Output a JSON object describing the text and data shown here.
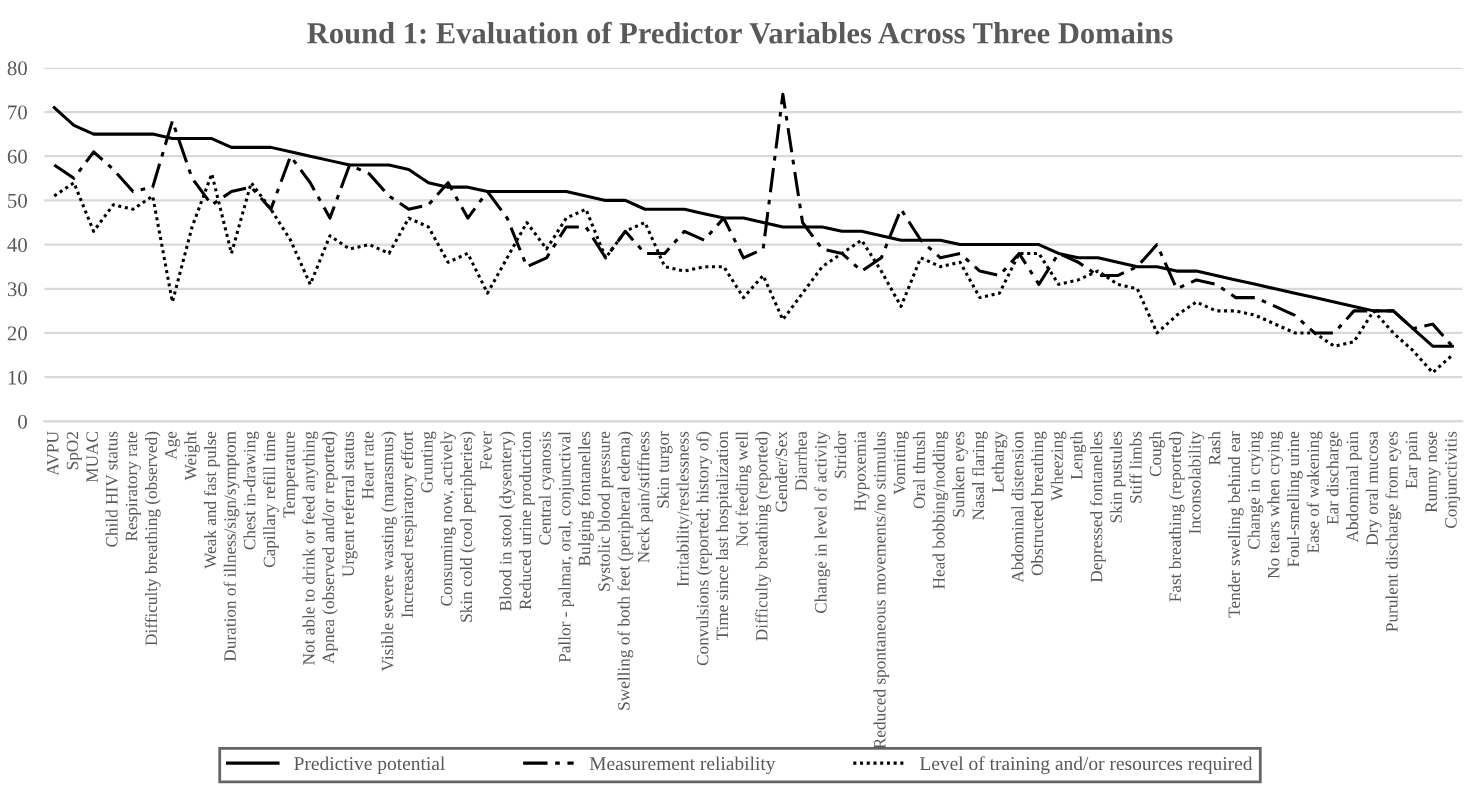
{
  "chart_data": {
    "type": "line",
    "title": "Round 1: Evaluation of Predictor Variables Across Three Domains",
    "categories": [
      "AVPU",
      "SpO2",
      "MUAC",
      "Child HIV status",
      "Respiratory rate",
      "Difficulty breathing (observed)",
      "Age",
      "Weight",
      "Weak and fast pulse",
      "Duration of illness/sign/symptom",
      "Chest in-drawing",
      "Capillary refill time",
      "Temperature",
      "Not able to drink or feed anything",
      "Apnea (observed and/or reported)",
      "Urgent referral status",
      "Heart rate",
      "Visible severe wasting (marasmus)",
      "Increased respiratory effort",
      "Grunting",
      "Consuming now, actively",
      "Skin cold (cool peripheries)",
      "Fever",
      "Blood in stool (dysentery)",
      "Reduced urine production",
      "Central cyanosis",
      "Pallor - palmar, oral, conjunctival",
      "Bulging fontanelles",
      "Systolic blood pressure",
      "Swelling of both feet (peripheral edema)",
      "Neck pain/stiffness",
      "Skin turgor",
      "Irritability/restlessness",
      "Convulsions (reported; history of)",
      "Time since last hospitalization",
      "Not feeding well",
      "Difficulty breathing (reported)",
      "Gender/Sex",
      "Diarrhea",
      "Change in level of activity",
      "Stridor",
      "Hypoxemia",
      "Reduced spontaneous movements/no stimulus",
      "Vomiting",
      "Oral thrush",
      "Head bobbing/nodding",
      "Sunken eyes",
      "Nasal flaring",
      "Lethargy",
      "Abdominal distension",
      "Obstructed breathing",
      "Wheezing",
      "Length",
      "Depressed fontanelles",
      "Skin pustules",
      "Stiff limbs",
      "Cough",
      "Fast breathing (reported)",
      "Inconsolability",
      "Rash",
      "Tender swelling behind ear",
      "Change in crying",
      "No tears when crying",
      "Foul-smelling urine",
      "Ease of wakening",
      "Ear discharge",
      "Abdominal pain",
      "Dry oral mucosa",
      "Purulent discharge from eyes",
      "Ear pain",
      "Runny nose",
      "Conjunctivitis"
    ],
    "series": [
      {
        "name": "Predictive potential",
        "color": "#000000",
        "line_style": "solid",
        "values": [
          71,
          67,
          65,
          65,
          65,
          65,
          64,
          64,
          64,
          62,
          62,
          62,
          61,
          60,
          59,
          58,
          58,
          58,
          57,
          54,
          53,
          53,
          52,
          52,
          52,
          52,
          52,
          51,
          50,
          50,
          48,
          48,
          48,
          47,
          46,
          46,
          45,
          44,
          44,
          44,
          43,
          43,
          42,
          41,
          41,
          41,
          40,
          40,
          40,
          40,
          40,
          38,
          37,
          37,
          36,
          35,
          35,
          34,
          34,
          33,
          32,
          31,
          30,
          29,
          28,
          27,
          26,
          25,
          25,
          21,
          17,
          17
        ]
      },
      {
        "name": "Measurement reliability",
        "color": "#000000",
        "line_style": "dashdot",
        "values": [
          58,
          55,
          61,
          57,
          52,
          53,
          68,
          55,
          49,
          52,
          53,
          48,
          60,
          54,
          46,
          58,
          56,
          51,
          48,
          49,
          54,
          46,
          52,
          46,
          35,
          37,
          44,
          44,
          37,
          43,
          38,
          38,
          43,
          41,
          46,
          37,
          39,
          74,
          45,
          39,
          38,
          34,
          37,
          48,
          41,
          37,
          38,
          34,
          33,
          38,
          31,
          38,
          36,
          33,
          33,
          35,
          40,
          30,
          32,
          31,
          28,
          28,
          26,
          24,
          20,
          20,
          25,
          25,
          25,
          21,
          22,
          17
        ]
      },
      {
        "name": "Level of training and/or resources required",
        "color": "#000000",
        "line_style": "dotted",
        "values": [
          51,
          54,
          43,
          49,
          48,
          51,
          27,
          44,
          56,
          38,
          54,
          48,
          41,
          31,
          42,
          39,
          40,
          38,
          46,
          44,
          36,
          38,
          29,
          37,
          45,
          39,
          46,
          48,
          37,
          43,
          45,
          35,
          34,
          35,
          35,
          28,
          33,
          23,
          29,
          35,
          38,
          41,
          34,
          26,
          37,
          35,
          36,
          28,
          29,
          38,
          38,
          31,
          32,
          34,
          31,
          30,
          20,
          24,
          27,
          25,
          25,
          24,
          22,
          20,
          20,
          17,
          18,
          25,
          20,
          16,
          11,
          15
        ]
      }
    ],
    "ylim": [
      0,
      80
    ],
    "yticks": [
      0,
      10,
      20,
      30,
      40,
      50,
      60,
      70,
      80
    ],
    "grid": "y",
    "legend": "bottom",
    "marker": "none"
  }
}
